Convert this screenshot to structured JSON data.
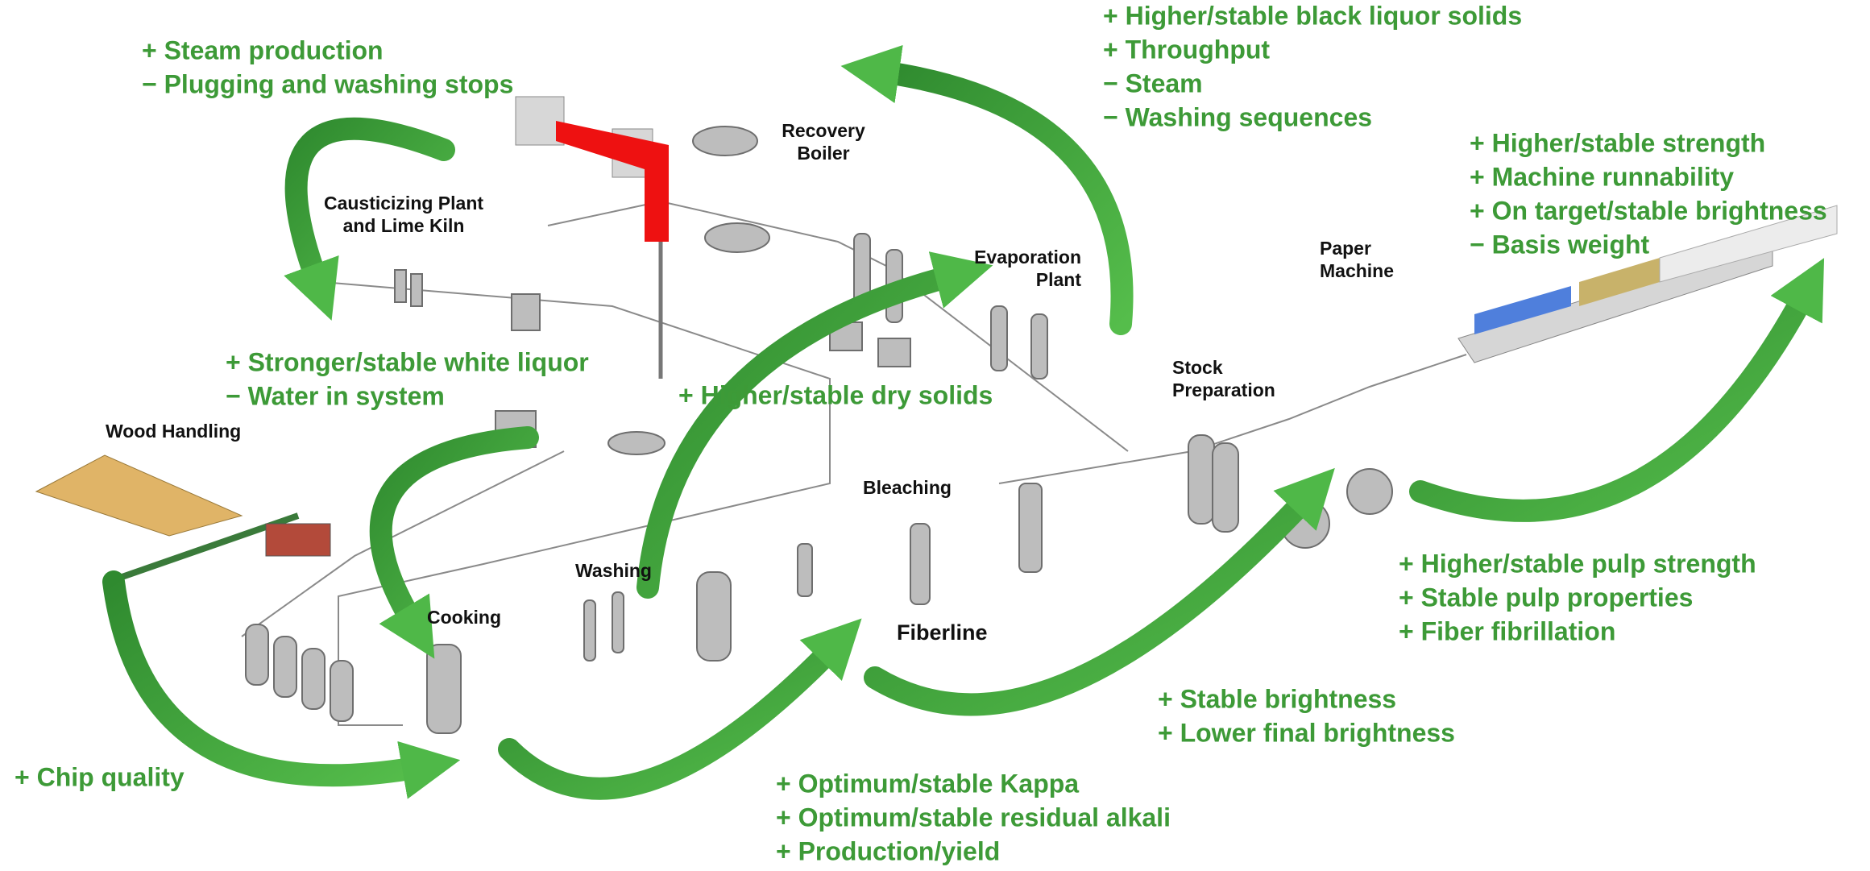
{
  "areas": [
    {
      "lines": [
        "Recovery",
        "Boiler"
      ]
    },
    {
      "lines": [
        "Causticizing Plant",
        "and Lime Kiln"
      ]
    },
    {
      "lines": [
        "Evaporation",
        "Plant"
      ]
    },
    {
      "lines": [
        "Paper",
        "Machine"
      ]
    },
    {
      "lines": [
        "Stock",
        "Preparation"
      ]
    },
    {
      "lines": [
        "Wood Handling"
      ]
    },
    {
      "lines": [
        "Bleaching"
      ]
    },
    {
      "lines": [
        "Washing"
      ]
    },
    {
      "lines": [
        "Cooking"
      ]
    },
    {
      "lines": [
        "Fiberline"
      ]
    }
  ],
  "benefits": [
    {
      "lines": [
        "+ Steam production",
        "− Plugging and washing stops"
      ]
    },
    {
      "lines": [
        "+ Higher/stable black liquor solids",
        "+ Throughput",
        "− Steam",
        "− Washing sequences"
      ]
    },
    {
      "lines": [
        "+ Higher/stable strength",
        "+ Machine runnability",
        "+ On target/stable brightness",
        "− Basis weight"
      ]
    },
    {
      "lines": [
        "+ Stronger/stable white liquor",
        "− Water in system"
      ]
    },
    {
      "lines": [
        "+ Higher/stable dry solids"
      ]
    },
    {
      "lines": [
        "+ Higher/stable pulp strength",
        "+ Stable pulp properties",
        "+ Fiber fibrillation"
      ]
    },
    {
      "lines": [
        "+ Stable brightness",
        "+ Lower final brightness"
      ]
    },
    {
      "lines": [
        "+ Optimum/stable Kappa",
        "+ Optimum/stable residual alkali",
        "+ Production/yield"
      ]
    },
    {
      "lines": [
        "+ Chip quality"
      ]
    }
  ]
}
